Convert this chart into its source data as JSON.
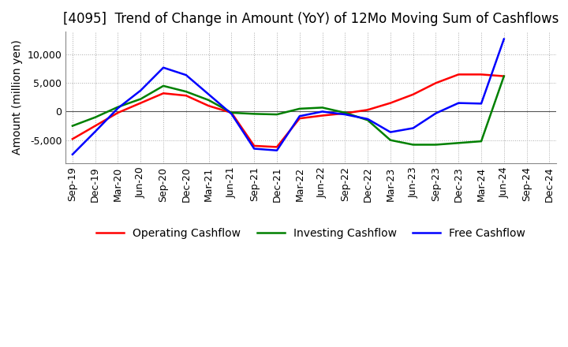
{
  "title": "[4095]  Trend of Change in Amount (YoY) of 12Mo Moving Sum of Cashflows",
  "ylabel": "Amount (million yen)",
  "xlabels": [
    "Sep-19",
    "Dec-19",
    "Mar-20",
    "Jun-20",
    "Sep-20",
    "Dec-20",
    "Mar-21",
    "Jun-21",
    "Sep-21",
    "Dec-21",
    "Mar-22",
    "Jun-22",
    "Sep-22",
    "Dec-22",
    "Mar-23",
    "Jun-23",
    "Sep-23",
    "Dec-23",
    "Mar-24",
    "Jun-24",
    "Sep-24",
    "Dec-24"
  ],
  "operating": [
    -4800,
    -2500,
    -200,
    1500,
    3200,
    2800,
    1000,
    -200,
    -6000,
    -6200,
    -1200,
    -700,
    -300,
    300,
    1500,
    3000,
    5000,
    6500,
    6500,
    6200,
    null,
    null
  ],
  "investing": [
    -2500,
    -1000,
    800,
    2200,
    4500,
    3500,
    2000,
    -200,
    -400,
    -500,
    500,
    700,
    -200,
    -1500,
    -5000,
    -5800,
    -5800,
    -5500,
    -5200,
    6200,
    null,
    null
  ],
  "free": [
    -7500,
    -3500,
    600,
    3700,
    7700,
    6400,
    3000,
    -400,
    -6500,
    -6800,
    -800,
    0,
    -500,
    -1300,
    -3600,
    -2900,
    -300,
    1500,
    1400,
    12700,
    null,
    null
  ],
  "ylim": [
    -9000,
    14000
  ],
  "yticks": [
    -5000,
    0,
    5000,
    10000
  ],
  "operating_color": "#ff0000",
  "investing_color": "#008000",
  "free_color": "#0000ff",
  "bg_color": "#ffffff",
  "grid_color": "#aaaaaa",
  "title_fontsize": 12,
  "label_fontsize": 10,
  "tick_fontsize": 9
}
